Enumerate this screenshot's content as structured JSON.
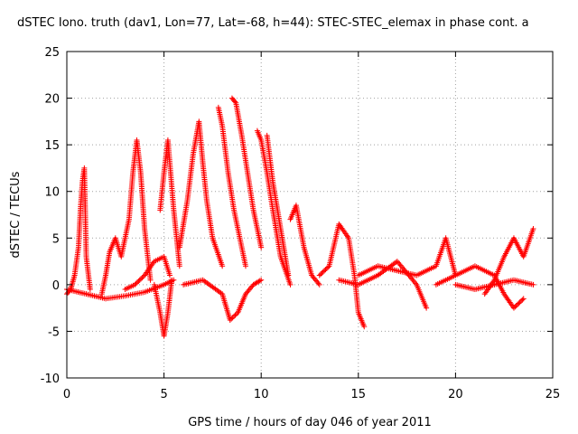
{
  "chart_data": {
    "type": "scatter",
    "title": "dSTEC Iono. truth (dav1, Lon=77, Lat=-68, h=44): STEC-STEC_elemax in phase cont. a",
    "xlabel": "GPS time / hours of day 046 of year 2011",
    "ylabel": "dSTEC  / TECUs",
    "xlim": [
      0,
      25
    ],
    "ylim": [
      -10,
      25
    ],
    "xticks": [
      0,
      5,
      10,
      15,
      20,
      25
    ],
    "yticks": [
      -10,
      -5,
      0,
      5,
      10,
      15,
      20,
      25
    ],
    "xtick_labels": [
      "0",
      "5",
      "10",
      "15",
      "20",
      "25"
    ],
    "ytick_labels": [
      "-10",
      "-5",
      "0",
      "5",
      "10",
      "15",
      "20",
      "25"
    ],
    "grid": true,
    "marker": "plus",
    "color": "#ff0000",
    "series": [
      {
        "x": [
          0.0,
          0.2,
          0.4,
          0.6,
          0.7,
          0.8,
          0.9,
          1.0,
          1.2
        ],
        "y": [
          -1.0,
          -0.5,
          1.0,
          4.0,
          8.0,
          11.0,
          12.5,
          3.0,
          -0.5
        ]
      },
      {
        "x": [
          0.0,
          1.0,
          2.0,
          3.0,
          4.0,
          5.0,
          5.5
        ],
        "y": [
          -0.5,
          -1.0,
          -1.5,
          -1.2,
          -0.8,
          0.0,
          0.5
        ]
      },
      {
        "x": [
          1.8,
          2.0,
          2.2,
          2.5,
          2.8,
          3.2,
          3.4,
          3.6,
          3.8,
          4.0,
          4.3
        ],
        "y": [
          -1.0,
          1.0,
          3.5,
          5.0,
          3.0,
          7.0,
          12.0,
          15.5,
          12.0,
          6.0,
          0.5
        ]
      },
      {
        "x": [
          3.0,
          3.5,
          4.0,
          4.5,
          5.0,
          5.3
        ],
        "y": [
          -0.5,
          0.0,
          1.0,
          2.5,
          3.0,
          1.0
        ]
      },
      {
        "x": [
          4.5,
          4.8,
          5.0,
          5.2,
          5.4
        ],
        "y": [
          0.0,
          -3.0,
          -5.5,
          -3.0,
          0.5
        ]
      },
      {
        "x": [
          4.8,
          5.0,
          5.2,
          5.5,
          5.8
        ],
        "y": [
          8.0,
          12.0,
          15.5,
          8.0,
          2.0
        ]
      },
      {
        "x": [
          5.8,
          6.2,
          6.5,
          6.8,
          7.0,
          7.2,
          7.5,
          8.0
        ],
        "y": [
          4.0,
          9.0,
          14.0,
          17.5,
          13.0,
          9.0,
          5.0,
          2.0
        ]
      },
      {
        "x": [
          6.0,
          7.0,
          8.0,
          8.4,
          8.8,
          9.2,
          9.6,
          10.0
        ],
        "y": [
          0.0,
          0.5,
          -1.0,
          -3.8,
          -3.0,
          -1.0,
          0.0,
          0.5
        ]
      },
      {
        "x": [
          7.8,
          8.0,
          8.3,
          8.6,
          8.9,
          9.2
        ],
        "y": [
          19.0,
          17.0,
          12.0,
          8.0,
          5.0,
          2.0
        ]
      },
      {
        "x": [
          8.5,
          8.7,
          9.0,
          9.3,
          9.6,
          10.0
        ],
        "y": [
          20.0,
          19.5,
          16.0,
          12.0,
          8.0,
          4.0
        ]
      },
      {
        "x": [
          9.8,
          10.0,
          10.3,
          10.6,
          11.0,
          11.5
        ],
        "y": [
          16.5,
          15.5,
          12.0,
          8.0,
          3.0,
          0.0
        ]
      },
      {
        "x": [
          10.3,
          10.6,
          11.0,
          11.4
        ],
        "y": [
          16.0,
          11.0,
          6.0,
          1.0
        ]
      },
      {
        "x": [
          11.5,
          11.8,
          12.2,
          12.6,
          13.0
        ],
        "y": [
          7.0,
          8.5,
          4.0,
          1.0,
          0.0
        ]
      },
      {
        "x": [
          13.0,
          13.5,
          14.0,
          14.5,
          14.8,
          15.0,
          15.3
        ],
        "y": [
          1.0,
          2.0,
          6.5,
          5.0,
          1.0,
          -3.0,
          -4.5
        ]
      },
      {
        "x": [
          15.0,
          16.0,
          17.0,
          18.0,
          19.0,
          19.5,
          20.0
        ],
        "y": [
          1.0,
          2.0,
          1.5,
          1.0,
          2.0,
          5.0,
          1.0
        ]
      },
      {
        "x": [
          14.0,
          15.0,
          16.0,
          17.0,
          18.0,
          18.5
        ],
        "y": [
          0.5,
          0.0,
          1.0,
          2.5,
          0.0,
          -2.5
        ]
      },
      {
        "x": [
          19.0,
          20.0,
          21.0,
          22.0,
          22.5,
          23.0,
          23.5
        ],
        "y": [
          0.0,
          1.0,
          2.0,
          1.0,
          -1.0,
          -2.5,
          -1.5
        ]
      },
      {
        "x": [
          21.5,
          22.0,
          22.5,
          23.0,
          23.5,
          24.0
        ],
        "y": [
          -1.0,
          0.5,
          3.0,
          5.0,
          3.0,
          6.0
        ]
      },
      {
        "x": [
          20.0,
          21.0,
          22.0,
          23.0,
          24.0
        ],
        "y": [
          0.0,
          -0.5,
          0.0,
          0.5,
          0.0
        ]
      }
    ]
  }
}
